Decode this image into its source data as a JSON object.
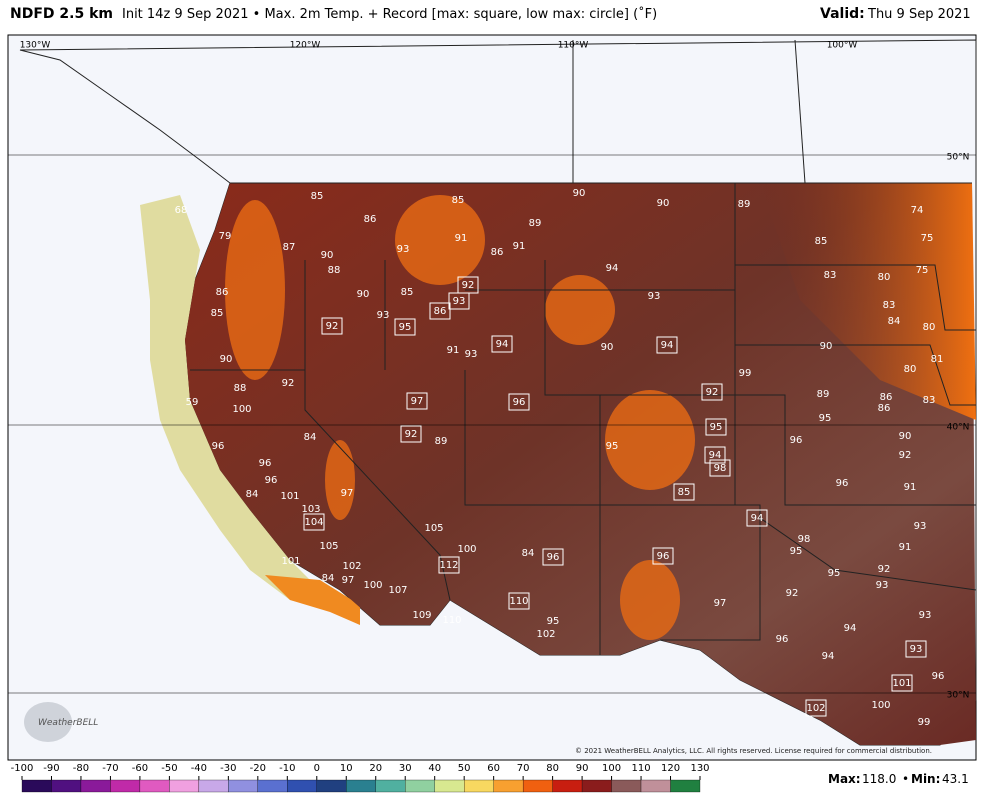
{
  "header": {
    "model": "NDFD 2.5 km",
    "description": "Init 14z 9 Sep 2021 • Max. 2m Temp. + Record [max: square, low max: circle] (˚F)",
    "valid_label": "Valid:",
    "valid_date": "Thu 9 Sep 2021"
  },
  "map": {
    "graticule": [
      "130°W",
      "120°W",
      "110°W",
      "100°W",
      "50°N",
      "40°N",
      "30°N"
    ],
    "stations": [
      {
        "value": 85
      },
      {
        "value": 85
      },
      {
        "value": 90
      },
      {
        "value": 90
      },
      {
        "value": 89
      },
      {
        "value": 74
      },
      {
        "value": 68
      },
      {
        "value": 86
      },
      {
        "value": 89
      },
      {
        "value": 79
      },
      {
        "value": 87
      },
      {
        "value": 90
      },
      {
        "value": 93
      },
      {
        "value": 91
      },
      {
        "value": 86
      },
      {
        "value": 91
      },
      {
        "value": 85
      },
      {
        "value": 75
      },
      {
        "value": 88
      },
      {
        "value": 94
      },
      {
        "value": 83
      },
      {
        "value": 80
      },
      {
        "value": 75
      },
      {
        "value": 86
      },
      {
        "value": 92,
        "square": true
      },
      {
        "value": 90
      },
      {
        "value": 85
      },
      {
        "value": 93,
        "square": true
      },
      {
        "value": 93
      },
      {
        "value": 86,
        "square": true
      },
      {
        "value": 85
      },
      {
        "value": 92,
        "square": true
      },
      {
        "value": 95,
        "square": true
      },
      {
        "value": 93
      },
      {
        "value": 83
      },
      {
        "value": 84
      },
      {
        "value": 80
      },
      {
        "value": 91
      },
      {
        "value": 93
      },
      {
        "value": 94,
        "square": true
      },
      {
        "value": 90
      },
      {
        "value": 94,
        "square": true
      },
      {
        "value": 90
      },
      {
        "value": 90
      },
      {
        "value": 81
      },
      {
        "value": 99
      },
      {
        "value": 80
      },
      {
        "value": 88
      },
      {
        "value": 92
      },
      {
        "value": 59
      },
      {
        "value": 100
      },
      {
        "value": 97,
        "square": true
      },
      {
        "value": 96,
        "square": true
      },
      {
        "value": 92,
        "square": true
      },
      {
        "value": 89
      },
      {
        "value": 86
      },
      {
        "value": 83
      },
      {
        "value": 86
      },
      {
        "value": 95
      },
      {
        "value": 92,
        "square": true
      },
      {
        "value": 89
      },
      {
        "value": 95
      },
      {
        "value": 95,
        "square": true
      },
      {
        "value": 96
      },
      {
        "value": 90
      },
      {
        "value": 96
      },
      {
        "value": 84
      },
      {
        "value": 94,
        "square": true
      },
      {
        "value": 98,
        "square": true
      },
      {
        "value": 92
      },
      {
        "value": 96
      },
      {
        "value": 96
      },
      {
        "value": 85,
        "square": true
      },
      {
        "value": 96
      },
      {
        "value": 91
      },
      {
        "value": 84
      },
      {
        "value": 101
      },
      {
        "value": 97
      },
      {
        "value": 103
      },
      {
        "value": 104,
        "square": true
      },
      {
        "value": 105
      },
      {
        "value": 94,
        "square": true
      },
      {
        "value": 93
      },
      {
        "value": 98
      },
      {
        "value": 105
      },
      {
        "value": 100
      },
      {
        "value": 84
      },
      {
        "value": 96,
        "square": true
      },
      {
        "value": 96,
        "square": true
      },
      {
        "value": 95
      },
      {
        "value": 91
      },
      {
        "value": 101
      },
      {
        "value": 102
      },
      {
        "value": 112,
        "square": true
      },
      {
        "value": 95
      },
      {
        "value": 92
      },
      {
        "value": 93
      },
      {
        "value": 84
      },
      {
        "value": 97
      },
      {
        "value": 100
      },
      {
        "value": 107
      },
      {
        "value": 92
      },
      {
        "value": 97
      },
      {
        "value": 110,
        "square": true
      },
      {
        "value": 93
      },
      {
        "value": 109
      },
      {
        "value": 110
      },
      {
        "value": 95
      },
      {
        "value": 94
      },
      {
        "value": 102
      },
      {
        "value": 96
      },
      {
        "value": 93,
        "square": true
      },
      {
        "value": 94
      },
      {
        "value": 96
      },
      {
        "value": 101,
        "square": true
      },
      {
        "value": 102,
        "square": true
      },
      {
        "value": 100
      },
      {
        "value": 99
      }
    ],
    "copyright": "© 2021 WeatherBELL Analytics, LLC. All rights reserved. License required for commercial distribution.",
    "logo": "WeatherBELL"
  },
  "colorbar": {
    "ticks": [
      -100,
      -90,
      -80,
      -70,
      -60,
      -50,
      -40,
      -30,
      -20,
      -10,
      0,
      10,
      20,
      30,
      40,
      50,
      60,
      70,
      80,
      90,
      100,
      110,
      120,
      130
    ],
    "colors": [
      "#2a0a5a",
      "#501080",
      "#8a1a9a",
      "#c02aa8",
      "#e05ac0",
      "#f0a0e0",
      "#c8a8e8",
      "#9090e0",
      "#5a70d0",
      "#3050b0",
      "#204080",
      "#2a8090",
      "#50b0a0",
      "#90d0a0",
      "#d8e890",
      "#f8d860",
      "#f8a030",
      "#f06010",
      "#c81e10",
      "#8a1c1c",
      "#8a5a5a",
      "#c0909a",
      "#208040"
    ]
  },
  "footer": {
    "max_label": "Max:",
    "max_value": "118.0",
    "separator": "•",
    "min_label": "Min:",
    "min_value": "43.1"
  }
}
